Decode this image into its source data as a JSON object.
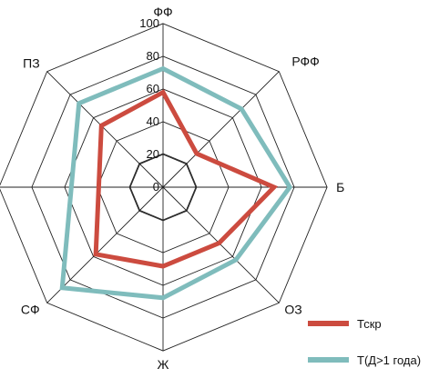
{
  "chart_data": {
    "type": "radar",
    "axes": [
      "ФФ",
      "РФФ",
      "Б",
      "ОЗ",
      "Ж",
      "СФ",
      "ПЗ"
    ],
    "rlim": [
      0,
      100
    ],
    "ticks": [
      0,
      20,
      40,
      60,
      80,
      100
    ],
    "grid": true,
    "legend_position": "bottom-right",
    "series": [
      {
        "name": "Тскр",
        "color": "#cc4b3f",
        "values": [
          60,
          30,
          70,
          50,
          50,
          60,
          55
        ]
      },
      {
        "name": "Т(Д>1 года)",
        "color": "#7fbcbc",
        "values": [
          75,
          70,
          80,
          65,
          70,
          90,
          75
        ]
      }
    ]
  }
}
